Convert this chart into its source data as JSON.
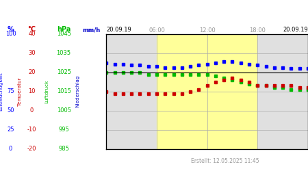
{
  "footer": "Erstellt: 12.05.2025 11:45",
  "bg_gray": "#e0e0e0",
  "bg_yellow": "#ffff99",
  "grid_color": "#aaaaaa",
  "blue": "#0000ff",
  "red": "#cc0000",
  "green": "#00bb00",
  "darkblue": "#0000cc",
  "hours": [
    0,
    0.5,
    1,
    1.5,
    2,
    2.5,
    3,
    3.5,
    4,
    4.5,
    5,
    5.5,
    6,
    6.5,
    7,
    7.5,
    8,
    8.5,
    9,
    9.5,
    10,
    10.5,
    11,
    11.5,
    12,
    12.5,
    13,
    13.5,
    14,
    14.5,
    15,
    15.5,
    16,
    16.5,
    17,
    17.5,
    18,
    18.5,
    19,
    19.5,
    20,
    20.5,
    21,
    21.5,
    22,
    22.5,
    23,
    23.5,
    24
  ],
  "humidity": [
    75,
    75,
    74,
    74,
    74,
    74,
    73,
    73,
    73,
    73,
    72,
    72,
    72,
    71,
    71,
    71,
    71,
    71,
    71,
    71,
    72,
    72,
    73,
    73,
    74,
    74,
    75,
    75,
    76,
    76,
    76,
    76,
    75,
    75,
    74,
    74,
    73,
    73,
    72,
    72,
    71,
    71,
    71,
    70,
    70,
    70,
    70,
    70,
    70
  ],
  "temperature": [
    10,
    10,
    9,
    9,
    9,
    9,
    9,
    9,
    9,
    9,
    9,
    9,
    9,
    9,
    9,
    9,
    9,
    9,
    9,
    9,
    10,
    10,
    11,
    12,
    13,
    14,
    15,
    16,
    16,
    17,
    17,
    16,
    16,
    15,
    15,
    14,
    13,
    13,
    13,
    13,
    13,
    13,
    13,
    13,
    13,
    12,
    12,
    12,
    12
  ],
  "pressure": [
    1025,
    1025,
    1025,
    1025,
    1025,
    1025,
    1025,
    1025,
    1025,
    1025,
    1024,
    1024,
    1024,
    1024,
    1024,
    1024,
    1024,
    1024,
    1024,
    1024,
    1024,
    1024,
    1024,
    1024,
    1024,
    1023,
    1023,
    1022,
    1022,
    1021,
    1021,
    1020,
    1020,
    1019,
    1019,
    1018,
    1018,
    1018,
    1018,
    1018,
    1017,
    1017,
    1017,
    1017,
    1016,
    1016,
    1016,
    1016,
    1016
  ],
  "pct_min": 0,
  "pct_max": 100,
  "temp_min": -20,
  "temp_max": 40,
  "prs_min": 985,
  "prs_max": 1045,
  "rain_min": 0,
  "rain_max": 24,
  "pct_ticks": [
    0,
    25,
    50,
    75,
    100
  ],
  "temp_ticks": [
    -20,
    -10,
    0,
    10,
    20,
    30,
    40
  ],
  "prs_ticks": [
    985,
    995,
    1005,
    1015,
    1025,
    1035,
    1045
  ],
  "rain_ticks": [
    0,
    4,
    8,
    12,
    16,
    20,
    24
  ]
}
